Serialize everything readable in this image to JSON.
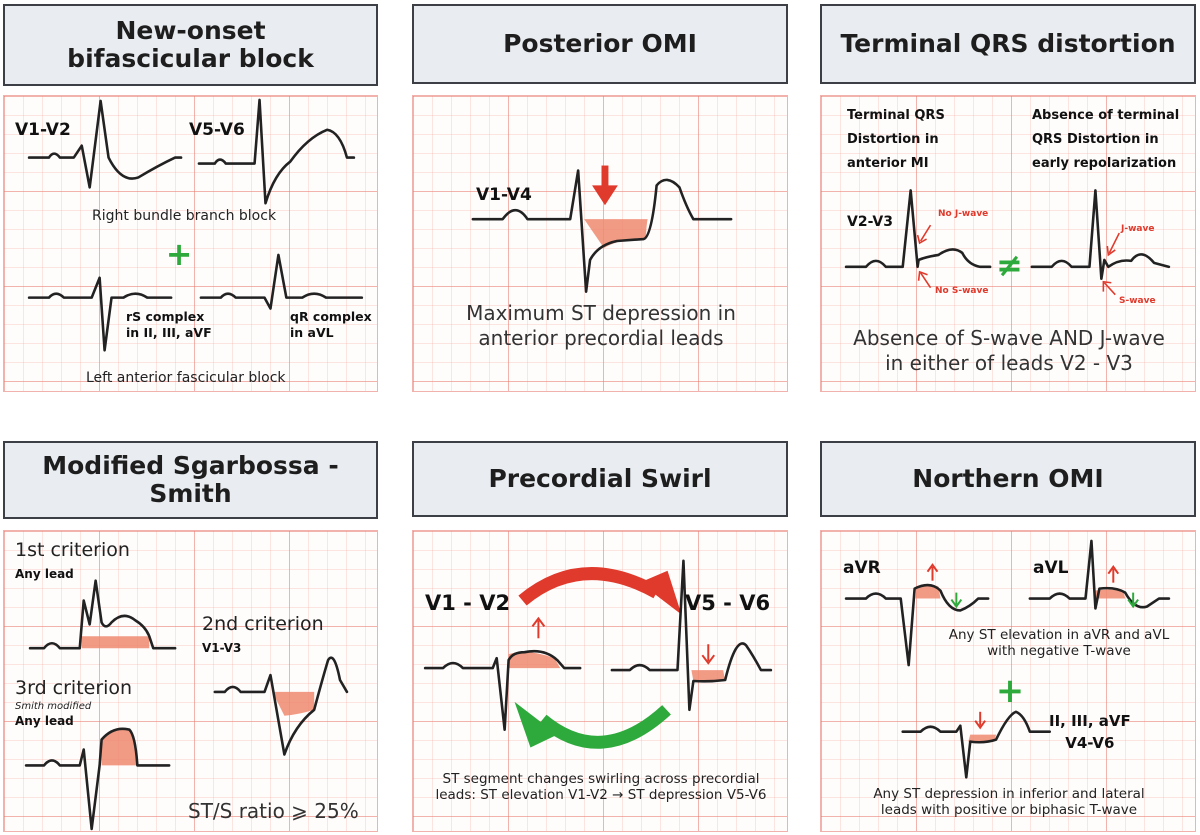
{
  "colors": {
    "title_bg": "#e9edf2",
    "st_fill": "#ee8a70",
    "red": "#e03a2c",
    "green": "#2eaa3d"
  },
  "panels": {
    "bifascicular": {
      "title": "New-onset\nbifascicular block",
      "lead_a": "V1-V2",
      "lead_b": "V5-V6",
      "rbbb": "Right bundle branch block",
      "rs": "rS complex\nin II, III, aVF",
      "qr": "qR complex\nin aVL",
      "lafb": "Left anterior fascicular block"
    },
    "posterior": {
      "title": "Posterior OMI",
      "lead": "V1-V4",
      "caption": "Maximum ST depression in\nanterior precordial leads"
    },
    "terminal": {
      "title": "Terminal QRS distortion",
      "left_head": "Terminal QRS\nDistortion in\nanterior MI",
      "right_head": "Absence of terminal\nQRS Distortion in\nearly repolarization",
      "lead": "V2-V3",
      "no_j": "No J-wave",
      "no_s": "No S-wave",
      "j": "J-wave",
      "s": "S-wave",
      "not_equal": "≠",
      "caption": "Absence of S-wave AND J-wave\nin either of leads V2 - V3"
    },
    "sgarbossa": {
      "title": "Modified Sgarbossa - Smith",
      "c1": "1st criterion",
      "c1_sub": "Any lead",
      "c2": "2nd criterion",
      "c2_sub": "V1-V3",
      "c3": "3rd criterion",
      "c3_mod": "Smith modified",
      "c3_sub": "Any lead",
      "ratio": "ST/S ratio ⩾ 25%"
    },
    "swirl": {
      "title": "Precordial Swirl",
      "left_lead": "V1 - V2",
      "right_lead": "V5 - V6",
      "caption": "ST segment changes swirling across precordial\nleads: ST elevation V1-V2 → ST depression V5-V6"
    },
    "northern": {
      "title": "Northern OMI",
      "avr": "aVR",
      "avl": "aVL",
      "cap1": "Any ST elevation in aVR and aVL\nwith negative T-wave",
      "leads": "II, III, aVF\nV4-V6",
      "cap2": "Any ST depression in inferior and lateral\nleads with positive or biphasic T-wave"
    }
  }
}
